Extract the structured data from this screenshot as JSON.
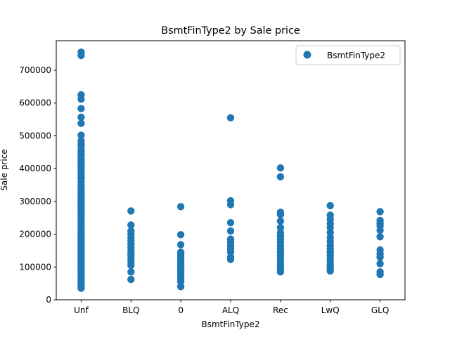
{
  "chart_data": {
    "type": "scatter",
    "title": "BsmtFinType2 by Sale price",
    "xlabel": "BsmtFinType2",
    "ylabel": "Sale price",
    "categories": [
      "Unf",
      "BLQ",
      "0",
      "ALQ",
      "Rec",
      "LwQ",
      "GLQ"
    ],
    "ylim": [
      0,
      790000
    ],
    "yticks": [
      0,
      100000,
      200000,
      300000,
      400000,
      500000,
      600000,
      700000
    ],
    "grid": false,
    "legend": "top-right",
    "marker_color": "#1f77b4",
    "series": [
      {
        "name": "BsmtFinType2",
        "points": [
          [
            "Unf",
            755000
          ],
          [
            "Unf",
            745000
          ],
          [
            "Unf",
            625000
          ],
          [
            "Unf",
            611657
          ],
          [
            "Unf",
            582933
          ],
          [
            "Unf",
            556581
          ],
          [
            "Unf",
            538000
          ],
          [
            "Unf",
            501837
          ],
          [
            "Unf",
            485000
          ],
          [
            "Unf",
            475000
          ],
          [
            "Unf",
            466500
          ],
          [
            "Unf",
            455000
          ],
          [
            "Unf",
            446261
          ],
          [
            "Unf",
            440000
          ],
          [
            "Unf",
            430000
          ],
          [
            "Unf",
            423000
          ],
          [
            "Unf",
            415298
          ],
          [
            "Unf",
            410000
          ],
          [
            "Unf",
            402000
          ],
          [
            "Unf",
            395000
          ],
          [
            "Unf",
            385000
          ],
          [
            "Unf",
            377426
          ],
          [
            "Unf",
            370878
          ],
          [
            "Unf",
            360000
          ],
          [
            "Unf",
            350000
          ],
          [
            "Unf",
            342643
          ],
          [
            "Unf",
            335000
          ],
          [
            "Unf",
            325000
          ],
          [
            "Unf",
            317000
          ],
          [
            "Unf",
            310000
          ],
          [
            "Unf",
            302000
          ],
          [
            "Unf",
            295000
          ],
          [
            "Unf",
            287000
          ],
          [
            "Unf",
            280000
          ],
          [
            "Unf",
            272000
          ],
          [
            "Unf",
            265000
          ],
          [
            "Unf",
            258000
          ],
          [
            "Unf",
            250000
          ],
          [
            "Unf",
            243000
          ],
          [
            "Unf",
            235000
          ],
          [
            "Unf",
            228000
          ],
          [
            "Unf",
            220000
          ],
          [
            "Unf",
            213000
          ],
          [
            "Unf",
            205000
          ],
          [
            "Unf",
            198000
          ],
          [
            "Unf",
            190000
          ],
          [
            "Unf",
            183000
          ],
          [
            "Unf",
            175000
          ],
          [
            "Unf",
            168000
          ],
          [
            "Unf",
            160000
          ],
          [
            "Unf",
            153000
          ],
          [
            "Unf",
            145000
          ],
          [
            "Unf",
            138000
          ],
          [
            "Unf",
            130000
          ],
          [
            "Unf",
            123000
          ],
          [
            "Unf",
            115000
          ],
          [
            "Unf",
            108000
          ],
          [
            "Unf",
            100000
          ],
          [
            "Unf",
            93000
          ],
          [
            "Unf",
            85000
          ],
          [
            "Unf",
            78000
          ],
          [
            "Unf",
            70000
          ],
          [
            "Unf",
            62000
          ],
          [
            "Unf",
            55000
          ],
          [
            "Unf",
            48000
          ],
          [
            "Unf",
            40000
          ],
          [
            "Unf",
            35311
          ],
          [
            "BLQ",
            271000
          ],
          [
            "BLQ",
            228000
          ],
          [
            "BLQ",
            210000
          ],
          [
            "BLQ",
            200000
          ],
          [
            "BLQ",
            190000
          ],
          [
            "BLQ",
            180000
          ],
          [
            "BLQ",
            170000
          ],
          [
            "BLQ",
            160000
          ],
          [
            "BLQ",
            150000
          ],
          [
            "BLQ",
            142000
          ],
          [
            "BLQ",
            135000
          ],
          [
            "BLQ",
            125000
          ],
          [
            "BLQ",
            115000
          ],
          [
            "BLQ",
            105000
          ],
          [
            "BLQ",
            85000
          ],
          [
            "BLQ",
            62000
          ],
          [
            "0",
            284000
          ],
          [
            "0",
            198500
          ],
          [
            "0",
            168000
          ],
          [
            "0",
            145000
          ],
          [
            "0",
            138000
          ],
          [
            "0",
            130000
          ],
          [
            "0",
            122000
          ],
          [
            "0",
            115000
          ],
          [
            "0",
            108000
          ],
          [
            "0",
            100000
          ],
          [
            "0",
            93000
          ],
          [
            "0",
            86000
          ],
          [
            "0",
            80000
          ],
          [
            "0",
            72000
          ],
          [
            "0",
            64000
          ],
          [
            "0",
            55000
          ],
          [
            "0",
            40000
          ],
          [
            "ALQ",
            555000
          ],
          [
            "ALQ",
            302000
          ],
          [
            "ALQ",
            290000
          ],
          [
            "ALQ",
            235000
          ],
          [
            "ALQ",
            210000
          ],
          [
            "ALQ",
            185000
          ],
          [
            "ALQ",
            175000
          ],
          [
            "ALQ",
            165000
          ],
          [
            "ALQ",
            155000
          ],
          [
            "ALQ",
            145000
          ],
          [
            "ALQ",
            130000
          ],
          [
            "ALQ",
            123000
          ],
          [
            "Rec",
            402000
          ],
          [
            "Rec",
            375000
          ],
          [
            "Rec",
            267000
          ],
          [
            "Rec",
            260000
          ],
          [
            "Rec",
            240000
          ],
          [
            "Rec",
            220000
          ],
          [
            "Rec",
            205000
          ],
          [
            "Rec",
            195000
          ],
          [
            "Rec",
            185000
          ],
          [
            "Rec",
            175000
          ],
          [
            "Rec",
            165000
          ],
          [
            "Rec",
            155000
          ],
          [
            "Rec",
            145000
          ],
          [
            "Rec",
            135000
          ],
          [
            "Rec",
            125000
          ],
          [
            "Rec",
            115000
          ],
          [
            "Rec",
            105000
          ],
          [
            "Rec",
            95000
          ],
          [
            "Rec",
            85000
          ],
          [
            "LwQ",
            287000
          ],
          [
            "LwQ",
            258000
          ],
          [
            "LwQ",
            245000
          ],
          [
            "LwQ",
            232000
          ],
          [
            "LwQ",
            220000
          ],
          [
            "LwQ",
            205000
          ],
          [
            "LwQ",
            190000
          ],
          [
            "LwQ",
            178000
          ],
          [
            "LwQ",
            165000
          ],
          [
            "LwQ",
            155000
          ],
          [
            "LwQ",
            145000
          ],
          [
            "LwQ",
            135000
          ],
          [
            "LwQ",
            125000
          ],
          [
            "LwQ",
            115000
          ],
          [
            "LwQ",
            105000
          ],
          [
            "LwQ",
            95000
          ],
          [
            "LwQ",
            88000
          ],
          [
            "GLQ",
            269000
          ],
          [
            "GLQ",
            242000
          ],
          [
            "GLQ",
            233000
          ],
          [
            "GLQ",
            225000
          ],
          [
            "GLQ",
            212000
          ],
          [
            "GLQ",
            192000
          ],
          [
            "GLQ",
            152000
          ],
          [
            "GLQ",
            140000
          ],
          [
            "GLQ",
            130000
          ],
          [
            "GLQ",
            110000
          ],
          [
            "GLQ",
            85000
          ],
          [
            "GLQ",
            77000
          ]
        ]
      }
    ]
  }
}
